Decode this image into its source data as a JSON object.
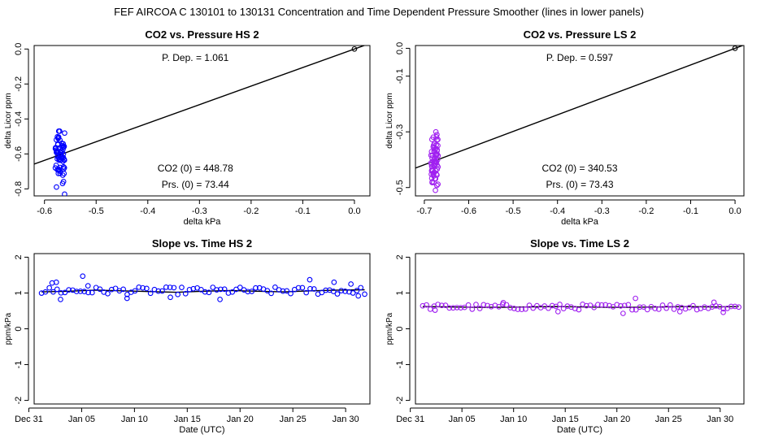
{
  "page_title": "FEF   AIRCOA C   130101 to 130131   Concentration and Time Dependent Pressure Smoother (lines in lower panels)",
  "colors": {
    "hs": "#0000ff",
    "ls": "#a020f0",
    "line": "#000000"
  },
  "chart_data": [
    {
      "type": "scatter",
      "title": "CO2 vs. Pressure HS 2",
      "xlabel": "delta kPa",
      "ylabel": "delta Licor ppm",
      "xlim": [
        -0.62,
        0.03
      ],
      "ylim": [
        -0.84,
        0.02
      ],
      "xticks": [
        -0.6,
        -0.5,
        -0.4,
        -0.3,
        -0.2,
        -0.1,
        0.0
      ],
      "xtick_labels": [
        "-0.6",
        "-0.5",
        "-0.4",
        "-0.3",
        "-0.2",
        "-0.1",
        "0.0"
      ],
      "yticks": [
        0.0,
        -0.2,
        -0.4,
        -0.6,
        -0.8
      ],
      "ytick_labels": [
        "0.0",
        "-0.2",
        "-0.4",
        "-0.6",
        "-0.8"
      ],
      "annotations": {
        "pdep": "P. Dep. =  1.061",
        "co2_0": "CO2 (0) =  448.78",
        "prs_0": "Prs. (0) =  73.44"
      },
      "fit": {
        "slope": 1.061,
        "intercept": 0.0
      },
      "origin_point": [
        0.0,
        0.0
      ],
      "color_key": "hs",
      "cluster": {
        "x_center": -0.57,
        "x_spread": 0.009,
        "y_min": -0.83,
        "y_max": -0.47,
        "y_mid": -0.61
      }
    },
    {
      "type": "scatter",
      "title": "CO2 vs. Pressure LS 2",
      "xlabel": "delta kPa",
      "ylabel": "delta Licor ppm",
      "xlim": [
        -0.72,
        0.02
      ],
      "ylim": [
        -0.53,
        0.01
      ],
      "xticks": [
        -0.7,
        -0.6,
        -0.5,
        -0.4,
        -0.3,
        -0.2,
        -0.1,
        0.0
      ],
      "xtick_labels": [
        "-0.7",
        "-0.6",
        "-0.5",
        "-0.4",
        "-0.3",
        "-0.2",
        "-0.1",
        "0.0"
      ],
      "yticks": [
        0.0,
        -0.1,
        -0.3,
        -0.5
      ],
      "ytick_labels": [
        "0.0",
        "-0.1",
        "-0.3",
        "-0.5"
      ],
      "annotations": {
        "pdep": "P. Dep. =  0.597",
        "co2_0": "CO2 (0) =  340.53",
        "prs_0": "Prs. (0) =  73.43"
      },
      "fit": {
        "slope": 0.597,
        "intercept": 0.0
      },
      "origin_point": [
        0.0,
        0.0
      ],
      "color_key": "ls",
      "cluster": {
        "x_center": -0.677,
        "x_spread": 0.008,
        "y_min": -0.51,
        "y_max": -0.3,
        "y_mid": -0.4
      }
    },
    {
      "type": "scatter",
      "title": "Slope vs. Time HS 2",
      "xlabel": "Date (UTC)",
      "ylabel": "ppm/kPa",
      "xlim": [
        0.5,
        32.3
      ],
      "ylim": [
        -2.1,
        2.1
      ],
      "xticks": [
        0,
        5,
        10,
        15,
        20,
        25,
        30
      ],
      "xtick_labels": [
        "Dec 31",
        "Jan 05",
        "Jan 10",
        "Jan 15",
        "Jan 20",
        "Jan 25",
        "Jan 30"
      ],
      "yticks": [
        -2,
        -1,
        0,
        1,
        2
      ],
      "ytick_labels": [
        "-2",
        "-1",
        "0",
        "1",
        "2"
      ],
      "color_key": "hs",
      "smoother": {
        "mean": 1.06,
        "values": [
          1.03,
          1.05,
          1.08,
          1.06,
          1.04,
          1.02,
          1.05,
          1.07,
          1.05,
          1.03,
          1.06,
          1.08,
          1.09
        ]
      },
      "points": {
        "start_day": 1.2,
        "end_day": 31.8,
        "n": 84,
        "mean": 1.06,
        "amplitude": 0.13,
        "outliers": [
          [
            2.2,
            1.28
          ],
          [
            2.6,
            1.3
          ],
          [
            3.0,
            0.82
          ],
          [
            5.1,
            1.47
          ],
          [
            5.6,
            1.2
          ],
          [
            9.3,
            0.85
          ],
          [
            13.4,
            0.88
          ],
          [
            18.1,
            0.82
          ],
          [
            26.6,
            1.37
          ],
          [
            28.9,
            1.3
          ],
          [
            30.5,
            1.25
          ],
          [
            31.2,
            0.92
          ]
        ]
      }
    },
    {
      "type": "scatter",
      "title": "Slope vs. Time LS 2",
      "xlabel": "Date (UTC)",
      "ylabel": "ppm/kPa",
      "xlim": [
        0.5,
        32.3
      ],
      "ylim": [
        -2.1,
        2.1
      ],
      "xticks": [
        0,
        5,
        10,
        15,
        20,
        25,
        30
      ],
      "xtick_labels": [
        "Dec 31",
        "Jan 05",
        "Jan 10",
        "Jan 15",
        "Jan 20",
        "Jan 25",
        "Jan 30"
      ],
      "yticks": [
        -2,
        -1,
        0,
        1,
        2
      ],
      "ytick_labels": [
        "-2",
        "-1",
        "0",
        "1",
        "2"
      ],
      "color_key": "ls",
      "smoother": {
        "mean": 0.61,
        "values": [
          0.62,
          0.61,
          0.6,
          0.6,
          0.61,
          0.62,
          0.61,
          0.6,
          0.6,
          0.61,
          0.62,
          0.61,
          0.62
        ]
      },
      "points": {
        "start_day": 1.2,
        "end_day": 31.8,
        "n": 84,
        "mean": 0.61,
        "amplitude": 0.1,
        "outliers": [
          [
            2.4,
            0.52
          ],
          [
            9.0,
            0.73
          ],
          [
            14.3,
            0.48
          ],
          [
            20.6,
            0.43
          ],
          [
            21.8,
            0.85
          ],
          [
            26.1,
            0.48
          ],
          [
            29.4,
            0.74
          ],
          [
            30.3,
            0.46
          ]
        ]
      }
    }
  ]
}
